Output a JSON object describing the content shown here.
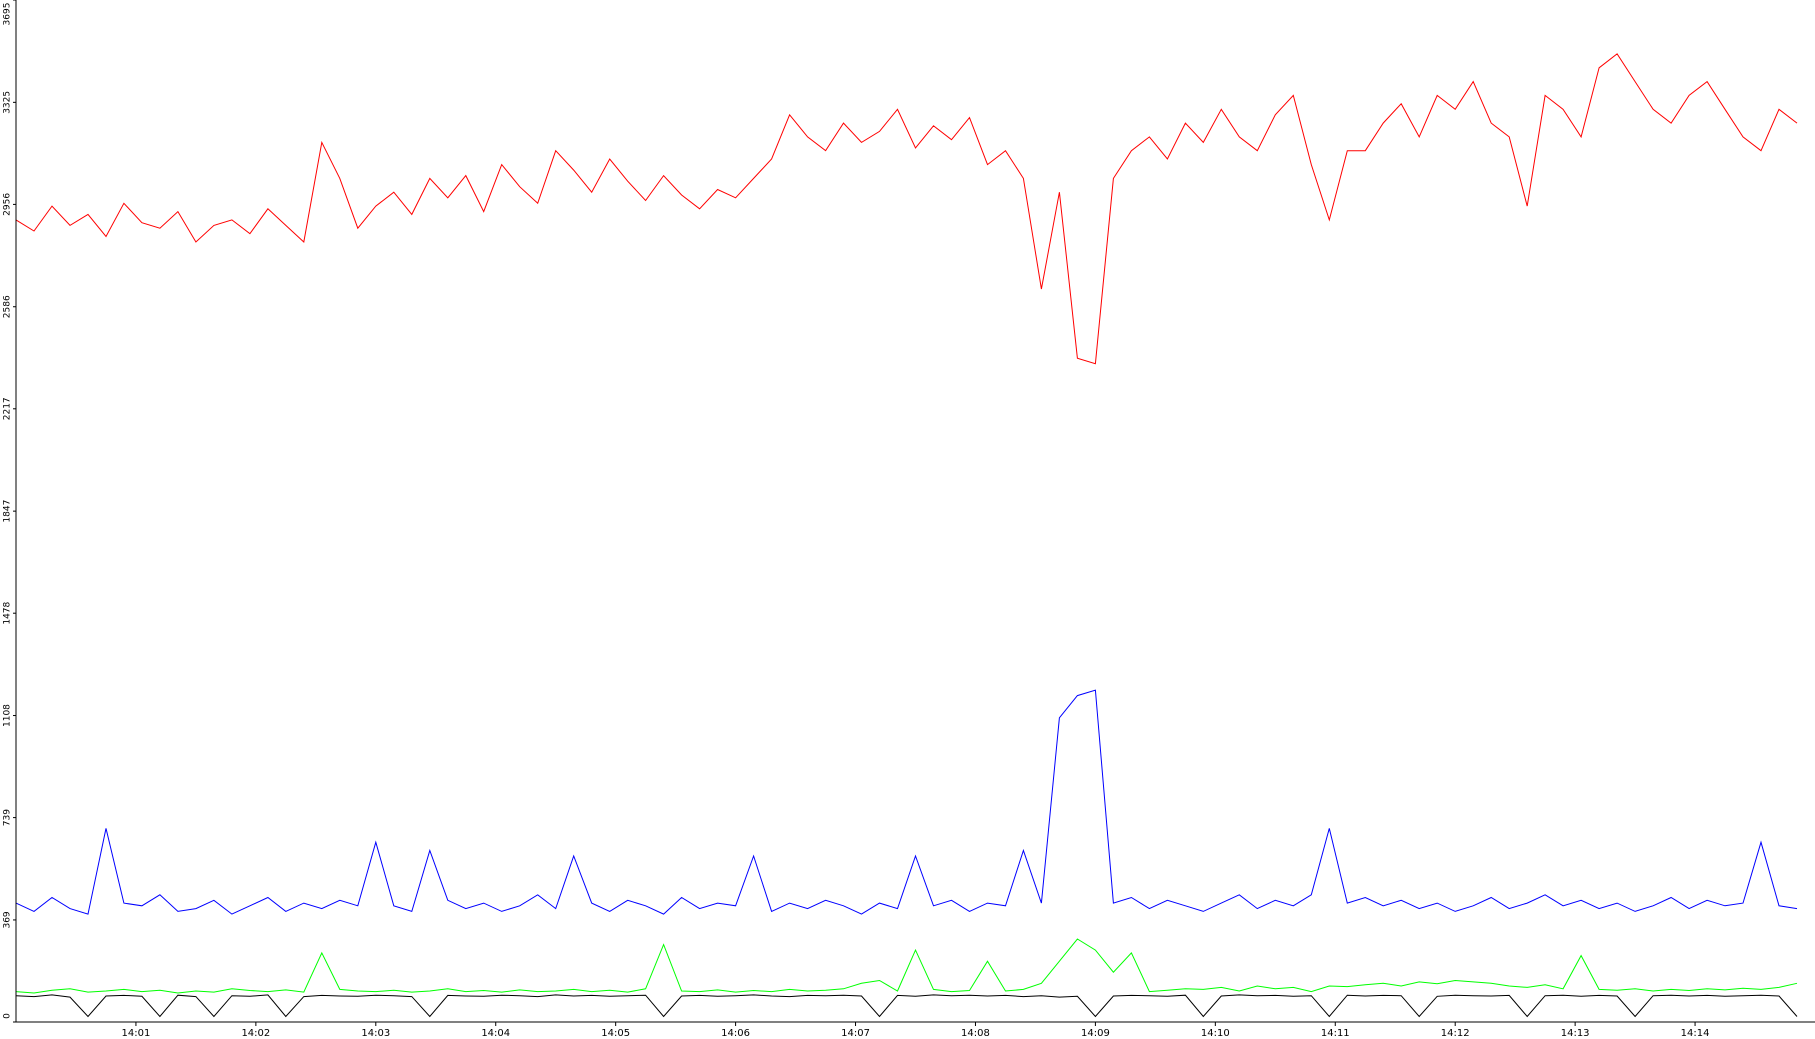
{
  "chart_data": {
    "type": "line",
    "x": [
      0,
      0.15,
      0.3,
      0.45,
      0.6,
      0.75,
      0.9,
      1.05,
      1.2,
      1.35,
      1.5,
      1.65,
      1.8,
      1.95,
      2.1,
      2.25,
      2.4,
      2.55,
      2.7,
      2.85,
      3,
      3.15,
      3.3,
      3.45,
      3.6,
      3.75,
      3.9,
      4.05,
      4.2,
      4.35,
      4.5,
      4.65,
      4.8,
      4.95,
      5.1,
      5.25,
      5.4,
      5.55,
      5.7,
      5.85,
      6,
      6.15,
      6.3,
      6.45,
      6.6,
      6.75,
      6.9,
      7.05,
      7.2,
      7.35,
      7.5,
      7.65,
      7.8,
      7.95,
      8.1,
      8.25,
      8.4,
      8.55,
      8.7,
      8.85,
      9,
      9.15,
      9.3,
      9.45,
      9.6,
      9.75,
      9.9,
      10.05,
      10.2,
      10.35,
      10.5,
      10.65,
      10.8,
      10.95,
      11.1,
      11.25,
      11.4,
      11.55,
      11.7,
      11.85,
      12,
      12.15,
      12.3,
      12.45,
      12.6,
      12.75,
      12.9,
      13.05,
      13.2,
      13.35,
      13.5,
      13.65,
      13.8,
      13.95,
      14.1,
      14.25,
      14.4,
      14.55,
      14.7,
      14.85
    ],
    "series": [
      {
        "color": "#ff0000",
        "values": [
          2900,
          2860,
          2950,
          2880,
          2920,
          2840,
          2960,
          2890,
          2870,
          2930,
          2820,
          2880,
          2900,
          2850,
          2940,
          2880,
          2820,
          3180,
          3050,
          2870,
          2950,
          3000,
          2920,
          3050,
          2980,
          3060,
          2930,
          3100,
          3020,
          2960,
          3150,
          3080,
          3000,
          3120,
          3040,
          2970,
          3060,
          2990,
          2940,
          3010,
          2980,
          3050,
          3120,
          3280,
          3200,
          3150,
          3250,
          3180,
          3220,
          3300,
          3160,
          3240,
          3190,
          3270,
          3100,
          3150,
          3050,
          2650,
          3000,
          2400,
          2380,
          3050,
          3150,
          3200,
          3120,
          3250,
          3180,
          3300,
          3200,
          3150,
          3280,
          3350,
          3100,
          2900,
          3150,
          3150,
          3250,
          3320,
          3200,
          3350,
          3300,
          3400,
          3250,
          3200,
          2950,
          3350,
          3300,
          3200,
          3450,
          3500,
          3400,
          3300,
          3250,
          3350,
          3400,
          3300,
          3200,
          3150,
          3300,
          3250
        ]
      },
      {
        "color": "#0000ff",
        "values": [
          430,
          400,
          450,
          410,
          390,
          700,
          430,
          420,
          460,
          400,
          410,
          440,
          390,
          420,
          450,
          400,
          430,
          410,
          440,
          420,
          650,
          420,
          400,
          620,
          440,
          410,
          430,
          400,
          420,
          460,
          410,
          600,
          430,
          400,
          440,
          420,
          390,
          450,
          410,
          430,
          420,
          600,
          400,
          430,
          410,
          440,
          420,
          390,
          430,
          410,
          600,
          420,
          440,
          400,
          430,
          420,
          620,
          430,
          1100,
          1180,
          1200,
          430,
          450,
          410,
          440,
          420,
          400,
          430,
          460,
          410,
          440,
          420,
          460,
          700,
          430,
          450,
          420,
          440,
          410,
          430,
          400,
          420,
          450,
          410,
          430,
          460,
          420,
          440,
          410,
          430,
          400,
          420,
          450,
          410,
          440,
          420,
          430,
          650,
          420,
          410
        ]
      },
      {
        "color": "#00ff00",
        "values": [
          110,
          105,
          115,
          120,
          108,
          112,
          118,
          110,
          115,
          105,
          112,
          108,
          120,
          114,
          110,
          116,
          108,
          250,
          118,
          112,
          110,
          115,
          108,
          112,
          120,
          110,
          114,
          108,
          116,
          110,
          112,
          118,
          110,
          115,
          108,
          120,
          280,
          112,
          110,
          116,
          108,
          114,
          110,
          118,
          112,
          115,
          120,
          140,
          150,
          112,
          260,
          118,
          110,
          114,
          220,
          112,
          118,
          140,
          220,
          300,
          260,
          180,
          250,
          110,
          115,
          120,
          118,
          125,
          112,
          130,
          120,
          125,
          110,
          130,
          128,
          135,
          140,
          130,
          145,
          138,
          150,
          145,
          140,
          130,
          125,
          135,
          120,
          240,
          118,
          115,
          120,
          112,
          118,
          114,
          120,
          116,
          122,
          118,
          125,
          140
        ]
      },
      {
        "color": "#000000",
        "values": [
          95,
          92,
          98,
          90,
          20,
          94,
          96,
          93,
          20,
          97,
          92,
          20,
          95,
          93,
          98,
          20,
          92,
          96,
          94,
          93,
          97,
          95,
          92,
          20,
          96,
          94,
          93,
          97,
          95,
          92,
          98,
          94,
          96,
          93,
          95,
          97,
          20,
          94,
          96,
          93,
          95,
          98,
          94,
          92,
          96,
          95,
          97,
          94,
          20,
          96,
          93,
          98,
          95,
          97,
          94,
          96,
          92,
          95,
          90,
          93,
          20,
          94,
          96,
          95,
          93,
          97,
          20,
          94,
          98,
          95,
          96,
          93,
          95,
          20,
          97,
          94,
          96,
          95,
          20,
          93,
          97,
          95,
          94,
          96,
          20,
          95,
          97,
          93,
          96,
          94,
          20,
          95,
          97,
          94,
          96,
          93,
          95,
          97,
          94,
          20
        ]
      }
    ],
    "xlim": [
      0,
      15
    ],
    "xticks": [
      {
        "value": 1,
        "label": "14:01"
      },
      {
        "value": 2,
        "label": "14:02"
      },
      {
        "value": 3,
        "label": "14:03"
      },
      {
        "value": 4,
        "label": "14:04"
      },
      {
        "value": 5,
        "label": "14:05"
      },
      {
        "value": 6,
        "label": "14:06"
      },
      {
        "value": 7,
        "label": "14:07"
      },
      {
        "value": 8,
        "label": "14:08"
      },
      {
        "value": 9,
        "label": "14:09"
      },
      {
        "value": 10,
        "label": "14:10"
      },
      {
        "value": 11,
        "label": "14:11"
      },
      {
        "value": 12,
        "label": "14:12"
      },
      {
        "value": 13,
        "label": "14:13"
      },
      {
        "value": 14,
        "label": "14:14"
      }
    ],
    "ylim": [
      0,
      3695
    ],
    "yticks": [
      0,
      369,
      739,
      1108,
      1478,
      1847,
      2217,
      2586,
      2956,
      3325,
      3695
    ]
  }
}
